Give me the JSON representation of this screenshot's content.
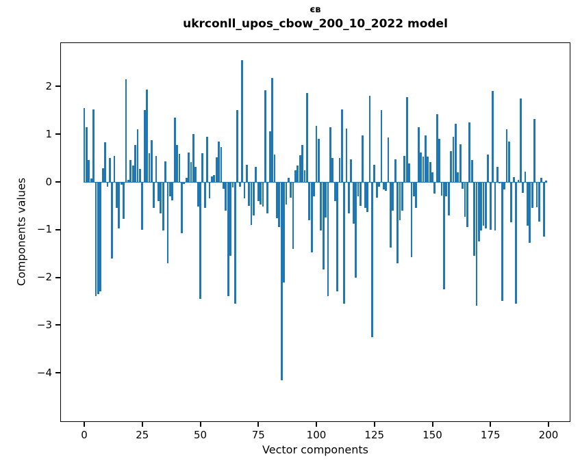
{
  "window": {
    "background": "#ffffff"
  },
  "chart_data": {
    "type": "bar",
    "title": "єв",
    "subtitle": "ukrconll_upos_cbow_200_10_2022 model",
    "xlabel": "Vector components",
    "ylabel": "Components values",
    "bar_color": "#1f77b4",
    "grid": false,
    "legend_position": "none",
    "x_ticks": [
      0,
      25,
      50,
      75,
      100,
      125,
      150,
      175,
      200
    ],
    "y_ticks": [
      2,
      1,
      0,
      -1,
      -2,
      -3,
      -4
    ],
    "xlim": [
      -10.3,
      209.4
    ],
    "ylim": [
      -5.0,
      2.9
    ],
    "x_start_index": 0,
    "values": [
      1.55,
      1.15,
      0.46,
      0.07,
      1.52,
      -2.4,
      -2.35,
      -2.3,
      0.28,
      0.83,
      -0.1,
      0.5,
      -1.6,
      0.55,
      -0.55,
      -0.97,
      -0.06,
      -0.78,
      2.15,
      0.04,
      0.46,
      0.35,
      0.78,
      1.11,
      0.27,
      -1.0,
      1.5,
      1.93,
      0.6,
      0.88,
      -0.54,
      0.55,
      -0.4,
      -0.66,
      -1.02,
      0.43,
      -1.71,
      -0.3,
      -0.38,
      1.35,
      0.78,
      0.59,
      -1.07,
      -0.05,
      0.09,
      0.61,
      0.42,
      1.0,
      0.32,
      -0.52,
      -2.45,
      0.6,
      -0.55,
      0.94,
      -0.35,
      0.12,
      0.15,
      0.51,
      0.85,
      0.73,
      -0.15,
      -0.6,
      -2.4,
      -1.55,
      -0.12,
      -2.55,
      1.5,
      -0.1,
      2.55,
      -0.35,
      0.36,
      -0.5,
      -0.9,
      -0.7,
      0.32,
      -0.4,
      -0.47,
      -0.52,
      1.92,
      -0.66,
      1.06,
      2.18,
      0.58,
      -0.76,
      -0.95,
      -4.16,
      -2.1,
      -0.47,
      0.08,
      -0.33,
      -1.4,
      0.25,
      0.34,
      0.56,
      0.77,
      0.24,
      1.87,
      -0.8,
      -1.48,
      -0.3,
      1.18,
      0.9,
      -1.02,
      -1.83,
      -0.75,
      -2.4,
      1.15,
      0.5,
      -0.4,
      -2.3,
      0.5,
      1.52,
      -2.55,
      1.12,
      -0.66,
      0.48,
      -0.88,
      -2.0,
      -0.3,
      -0.5,
      0.98,
      -0.55,
      -0.63,
      1.8,
      -3.25,
      0.36,
      -0.33,
      -0.1,
      1.5,
      -0.16,
      -0.18,
      0.93,
      -1.38,
      -0.6,
      0.48,
      -1.71,
      -0.8,
      -0.6,
      0.55,
      1.78,
      0.39,
      -1.57,
      -0.3,
      -0.55,
      1.15,
      0.62,
      0.53,
      0.98,
      0.53,
      0.41,
      0.2,
      -0.25,
      1.42,
      0.91,
      -0.28,
      -2.25,
      -0.3,
      -0.7,
      0.64,
      0.95,
      1.22,
      0.2,
      0.79,
      -0.15,
      -0.73,
      -0.95,
      1.24,
      0.46,
      -1.55,
      -2.6,
      -1.25,
      -1.02,
      -0.92,
      -0.97,
      0.58,
      -1.0,
      1.9,
      -1.02,
      0.32,
      -0.03,
      -2.5,
      -0.16,
      1.1,
      0.85,
      -0.85,
      0.1,
      -2.55,
      0.05,
      1.75,
      -0.23,
      0.22,
      -0.92,
      -1.27,
      -0.54,
      1.32,
      -0.53,
      -0.83,
      0.08,
      -1.14,
      0.03
    ]
  }
}
